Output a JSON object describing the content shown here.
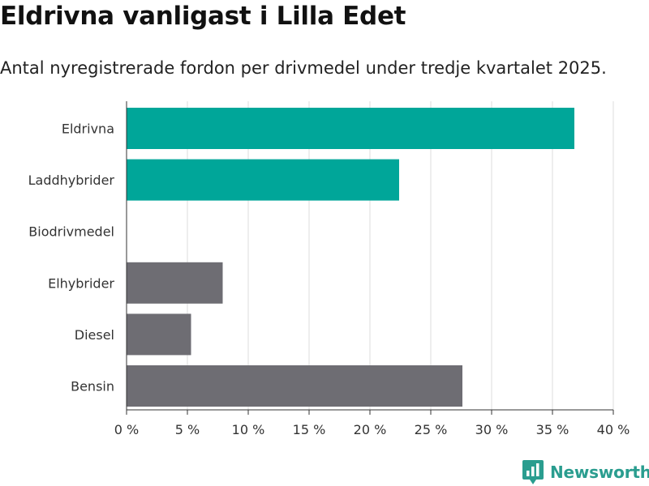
{
  "header": {
    "title": "Eldrivna vanligast i Lilla Edet",
    "subtitle": "Antal nyregistrerade fordon per drivmedel under tredje kvartalet 2025."
  },
  "brand": {
    "name": "Newsworthy",
    "color": "#2a9d8f"
  },
  "chart_data": {
    "type": "bar",
    "orientation": "horizontal",
    "title": "Eldrivna vanligast i Lilla Edet",
    "subtitle": "Antal nyregistrerade fordon per drivmedel under tredje kvartalet 2025.",
    "categories": [
      "Eldrivna",
      "Laddhybrider",
      "Biodrivmedel",
      "Elhybrider",
      "Diesel",
      "Bensin"
    ],
    "values": [
      36.8,
      22.4,
      0,
      7.9,
      5.3,
      27.6
    ],
    "colors": [
      "#00a699",
      "#00a699",
      "#00a699",
      "#6e6d73",
      "#6e6d73",
      "#6e6d73"
    ],
    "xlim": [
      0,
      40
    ],
    "xticks": [
      0,
      5,
      10,
      15,
      20,
      25,
      30,
      35,
      40
    ],
    "xtick_labels": [
      "0 %",
      "5 %",
      "10 %",
      "15 %",
      "20 %",
      "25 %",
      "30 %",
      "35 %",
      "40 %"
    ],
    "xlabel": "",
    "ylabel": "",
    "grid": "vertical",
    "gridColor": "#dddddd",
    "axisColor": "#333333"
  }
}
